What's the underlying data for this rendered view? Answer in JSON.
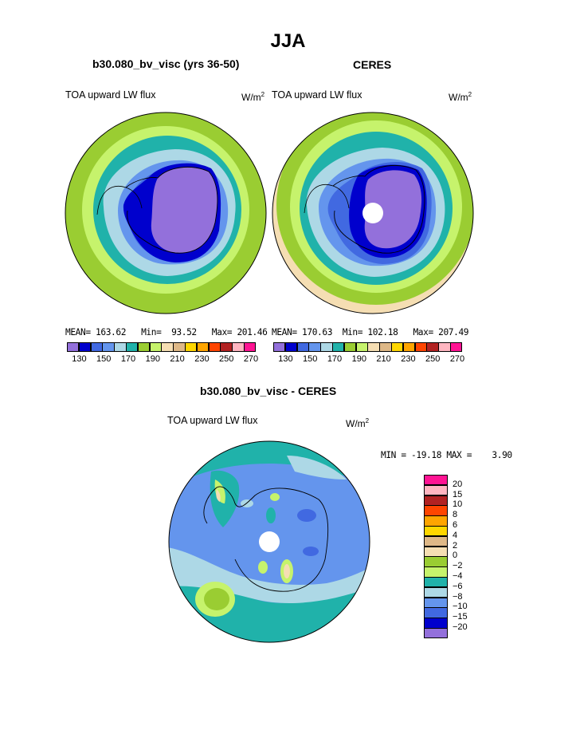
{
  "page": {
    "title": "JJA"
  },
  "panels": [
    {
      "case_title": "b30.080_bv_visc (yrs 36-50)",
      "variable_label": "TOA upward LW flux",
      "units_base": "W/m",
      "units_sup": "2",
      "mean_label": "MEAN=",
      "mean_value": "163.62",
      "min_label": "Min=",
      "min_value": "93.52",
      "max_label": "Max=",
      "max_value": "201.46",
      "has_pole_mask": false
    },
    {
      "case_title": "CERES",
      "variable_label": "TOA upward LW flux",
      "units_base": "W/m",
      "units_sup": "2",
      "mean_label": "MEAN=",
      "mean_value": "170.63",
      "min_label": "Min=",
      "min_value": "102.18",
      "max_label": "Max=",
      "max_value": "207.49",
      "has_pole_mask": true
    }
  ],
  "colorbar_top": {
    "colors": [
      "#9370db",
      "#0000cd",
      "#4169e1",
      "#6495ed",
      "#add8e6",
      "#20b2aa",
      "#9acd32",
      "#c6f36c",
      "#f5deb3",
      "#deb887",
      "#ffd700",
      "#ffa500",
      "#ff4500",
      "#b22222",
      "#ffb6c1",
      "#ff1493"
    ],
    "tick_labels": [
      "130",
      "150",
      "170",
      "190",
      "210",
      "230",
      "250",
      "270"
    ]
  },
  "difference": {
    "title": "b30.080_bv_visc - CERES",
    "variable_label": "TOA upward LW flux",
    "units_base": "W/m",
    "units_sup": "2",
    "min_label": "MIN =",
    "min_value": "-19.18",
    "max_label": "MAX =",
    "max_value": "3.90",
    "colorbar": {
      "colors_top_to_bottom": [
        "#ff1493",
        "#ffb6c1",
        "#b22222",
        "#ff4500",
        "#ffa500",
        "#ffd700",
        "#deb887",
        "#f5deb3",
        "#9acd32",
        "#c6f36c",
        "#20b2aa",
        "#add8e6",
        "#6495ed",
        "#4169e1",
        "#0000cd",
        "#9370db"
      ],
      "labels_top_to_bottom": [
        "20",
        "15",
        "10",
        "8",
        "6",
        "4",
        "2",
        "0",
        "−2",
        "−4",
        "−6",
        "−8",
        "−10",
        "−15",
        "−20"
      ]
    }
  }
}
